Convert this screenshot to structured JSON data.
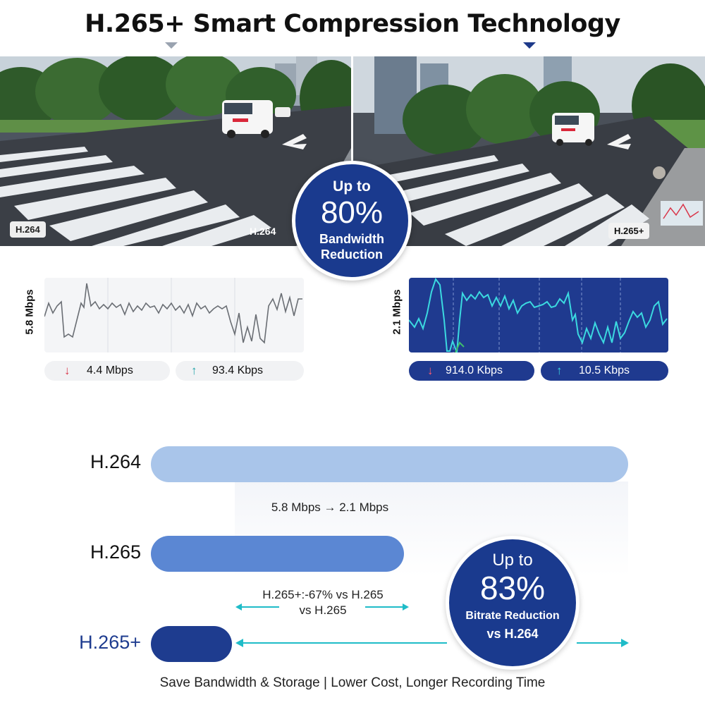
{
  "title": "H.265+ Smart Compression Technology",
  "photos": {
    "left": {
      "corner_tag": "H.264",
      "tag": "H.264"
    },
    "right": {
      "tag": "H.265+"
    }
  },
  "badge_top": {
    "line1": "Up to",
    "percent": "80%",
    "line2": "Bandwidth",
    "line3": "Reduction"
  },
  "graph_left": {
    "ylabel": "5.8 Mbps",
    "down_value": "4.4 Mbps",
    "up_value": "93.4 Kbps"
  },
  "graph_right": {
    "ylabel": "2.1 Mbps",
    "down_value": "914.0 Kbps",
    "up_value": "10.5 Kbps"
  },
  "comparison": {
    "rows": [
      {
        "label": "H.264",
        "fraction": 1.0,
        "color": "#a9c5ea"
      },
      {
        "label": "H.265",
        "fraction": 0.53,
        "color": "#5b87d3"
      },
      {
        "label": "H.265+",
        "fraction": 0.17,
        "color": "#1e3c8f"
      }
    ],
    "note1": "5.8 Mbps → 2.1 Mbps",
    "note2_line1": "H.265+:-67% vs H.265",
    "note2_line2": "vs H.265"
  },
  "badge_bottom": {
    "line1": "Up to",
    "percent": "83%",
    "line2": "Bitrate Reduction",
    "line3": "vs H.264"
  },
  "footer": "Save Bandwidth & Storage | Lower Cost, Longer Recording Time",
  "colors": {
    "navy": "#1a3a8e",
    "teal": "#1fbcc8",
    "red": "#d9364a"
  }
}
